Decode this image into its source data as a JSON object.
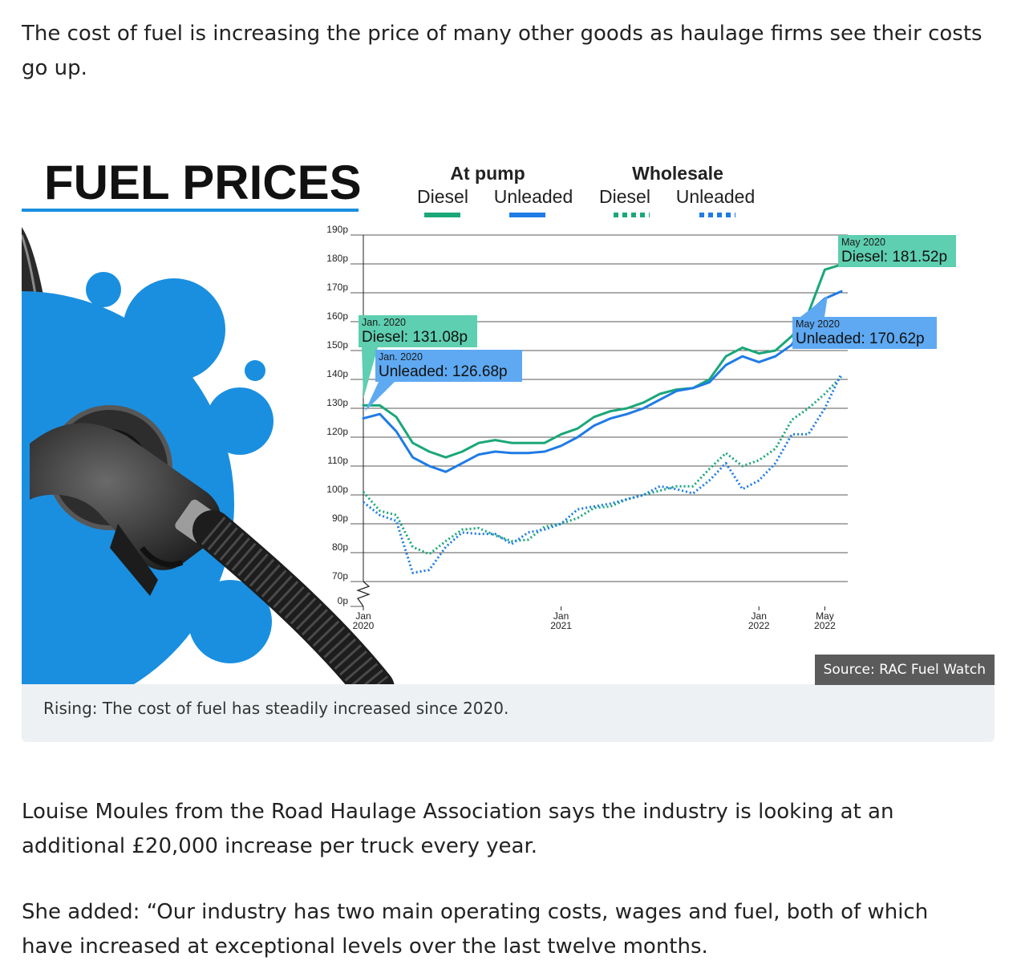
{
  "article": {
    "p1": "The cost of fuel is increasing the price of many other goods as haulage firms see their costs go up.",
    "p2": "Louise Moules from the Road Haulage Association says the industry is looking at an additional £20,000 increase per truck every year.",
    "p3": "She added: “Our industry has two main operating costs, wages and fuel, both of which have increased at exceptional levels over the last twelve months."
  },
  "figure": {
    "caption": "Rising: The cost of fuel has steadily increased since 2020.",
    "source": "Source: RAC Fuel Watch"
  },
  "legend": {
    "group_pump": "At pump",
    "group_wholesale": "Wholesale",
    "diesel": "Diesel",
    "unleaded": "Unleaded"
  },
  "colors": {
    "diesel": "#1aa77a",
    "unleaded": "#1f7be5",
    "diesel_label_bg": "#5ecfb0",
    "unleaded_label_bg": "#5ea9f2",
    "bubble": "#1a8fe0",
    "underline": "#1a8fe0"
  },
  "chart_data": {
    "type": "line",
    "title": "FUEL PRICES",
    "xlabel": "",
    "ylabel": "",
    "y_tick_labels": [
      "0p",
      "70p",
      "80p",
      "90p",
      "100p",
      "110p",
      "120p",
      "130p",
      "140p",
      "150p",
      "160p",
      "170p",
      "180p",
      "190p"
    ],
    "ylim": [
      70,
      190
    ],
    "y_axis_break": true,
    "x_tick_labels": [
      {
        "month": 0,
        "line1": "Jan",
        "line2": "2020"
      },
      {
        "month": 12,
        "line1": "Jan",
        "line2": "2021"
      },
      {
        "month": 24,
        "line1": "Jan",
        "line2": "2022"
      },
      {
        "month": 28,
        "line1": "May",
        "line2": "2022"
      }
    ],
    "grid": true,
    "legend": "top",
    "series": [
      {
        "name": "At pump Diesel",
        "style": "solid",
        "points": [
          [
            0,
            131
          ],
          [
            0.4,
            131
          ],
          [
            1,
            131
          ],
          [
            2,
            127
          ],
          [
            3,
            118
          ],
          [
            4,
            115
          ],
          [
            5,
            113
          ],
          [
            6,
            115
          ],
          [
            7,
            118
          ],
          [
            8,
            119
          ],
          [
            9,
            118
          ],
          [
            10,
            118
          ],
          [
            11,
            118
          ],
          [
            12,
            121
          ],
          [
            13,
            123
          ],
          [
            14,
            127
          ],
          [
            15,
            129
          ],
          [
            16,
            130
          ],
          [
            17,
            132
          ],
          [
            18,
            135
          ],
          [
            19,
            136.5
          ],
          [
            20,
            137
          ],
          [
            21,
            140
          ],
          [
            22,
            148
          ],
          [
            23,
            151
          ],
          [
            24,
            149
          ],
          [
            25,
            150
          ],
          [
            26,
            155
          ],
          [
            27,
            163
          ],
          [
            28,
            178
          ],
          [
            30,
            181.5
          ]
        ]
      },
      {
        "name": "At pump Unleaded",
        "style": "solid",
        "points": [
          [
            0,
            126.5
          ],
          [
            1,
            128
          ],
          [
            2,
            122
          ],
          [
            3,
            113
          ],
          [
            4,
            110
          ],
          [
            5,
            108
          ],
          [
            6,
            111
          ],
          [
            7,
            114
          ],
          [
            8,
            115
          ],
          [
            9,
            114.5
          ],
          [
            10,
            114.5
          ],
          [
            11,
            115
          ],
          [
            12,
            117
          ],
          [
            13,
            120
          ],
          [
            14,
            124
          ],
          [
            15,
            126.5
          ],
          [
            16,
            128
          ],
          [
            17,
            130
          ],
          [
            18,
            133
          ],
          [
            19,
            136
          ],
          [
            20,
            137
          ],
          [
            21,
            139
          ],
          [
            22,
            145
          ],
          [
            23,
            148
          ],
          [
            24,
            146
          ],
          [
            25,
            148
          ],
          [
            26,
            152
          ],
          [
            27,
            163
          ],
          [
            28,
            168
          ],
          [
            29,
            170.5
          ]
        ]
      },
      {
        "name": "Wholesale Diesel",
        "style": "dotted",
        "points": [
          [
            0,
            101
          ],
          [
            1,
            94.5
          ],
          [
            2,
            93
          ],
          [
            3,
            82
          ],
          [
            4,
            79.5
          ],
          [
            5,
            84
          ],
          [
            6,
            88
          ],
          [
            7,
            88.5
          ],
          [
            8,
            86
          ],
          [
            9,
            84
          ],
          [
            10,
            84.5
          ],
          [
            11,
            89
          ],
          [
            12,
            90
          ],
          [
            13,
            92
          ],
          [
            14,
            95.5
          ],
          [
            15,
            96
          ],
          [
            16,
            98.5
          ],
          [
            17,
            100
          ],
          [
            18,
            101.5
          ],
          [
            19,
            103
          ],
          [
            20,
            103
          ],
          [
            21,
            109
          ],
          [
            22,
            114.5
          ],
          [
            23,
            110
          ],
          [
            24,
            112
          ],
          [
            25,
            116
          ],
          [
            26,
            126
          ],
          [
            27,
            130
          ],
          [
            28,
            135
          ],
          [
            29,
            141
          ]
        ]
      },
      {
        "name": "Wholesale Unleaded",
        "style": "dotted",
        "points": [
          [
            0,
            97.5
          ],
          [
            1,
            93
          ],
          [
            2,
            91
          ],
          [
            3,
            73
          ],
          [
            4,
            74
          ],
          [
            5,
            82
          ],
          [
            6,
            87
          ],
          [
            7,
            86.5
          ],
          [
            8,
            86.5
          ],
          [
            9,
            83
          ],
          [
            10,
            87
          ],
          [
            11,
            88
          ],
          [
            12,
            90
          ],
          [
            13,
            95
          ],
          [
            14,
            96
          ],
          [
            15,
            97
          ],
          [
            16,
            98.5
          ],
          [
            17,
            100
          ],
          [
            18,
            103
          ],
          [
            19,
            102
          ],
          [
            20,
            100.5
          ],
          [
            21,
            105
          ],
          [
            22,
            111
          ],
          [
            23,
            102
          ],
          [
            24,
            105
          ],
          [
            25,
            111
          ],
          [
            26,
            121
          ],
          [
            27,
            121
          ],
          [
            28,
            130
          ],
          [
            29,
            142
          ]
        ]
      }
    ],
    "annotations": [
      {
        "series": "At pump Diesel",
        "date": "Jan. 2020",
        "label": "Diesel: 131.08p"
      },
      {
        "series": "At pump Unleaded",
        "date": "Jan. 2020",
        "label": "Unleaded: 126.68p"
      },
      {
        "series": "At pump Diesel",
        "date": "May 2020",
        "label": "Diesel: 181.52p"
      },
      {
        "series": "At pump Unleaded",
        "date": "May 2020",
        "label": "Unleaded: 170.62p"
      }
    ]
  }
}
